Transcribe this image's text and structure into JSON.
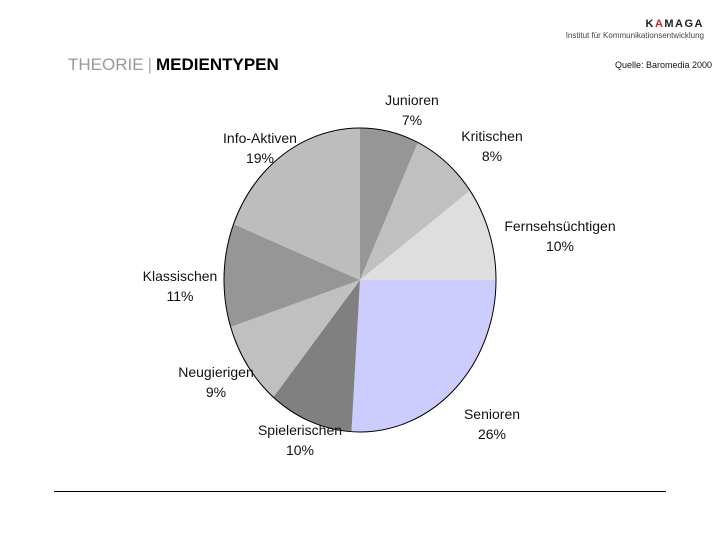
{
  "header": {
    "title_light": "THEORIE",
    "title_separator": "|",
    "title_bold": "MEDIENTYPEN",
    "logo_name_prefix": "K",
    "logo_name_accent": "A",
    "logo_name_suffix": "MAGA",
    "logo_subtitle": "Institut für Kommunikationsentwicklung",
    "source": "Quelle: Baromedia 2000"
  },
  "chart_data": {
    "type": "pie",
    "title": "Medientypen",
    "source": "Quelle: Baromedia 2000",
    "categories": [
      "Senioren",
      "Spielerischen",
      "Neugierigen",
      "Klassischen",
      "Info-Aktiven",
      "Junioren",
      "Kritischen",
      "Fernsehsüchtigen"
    ],
    "values": [
      26,
      10,
      9,
      11,
      19,
      7,
      8,
      10
    ],
    "labels": [
      "26%",
      "10%",
      "9%",
      "11%",
      "19%",
      "7%",
      "8%",
      "10%"
    ],
    "colors": [
      "#ccccff",
      "#808080",
      "#c0c0c0",
      "#969696",
      "#bdbdbd",
      "#969696",
      "#c0c0c0",
      "#dedede"
    ],
    "start_angle_deg": 0,
    "direction": "clockwise",
    "legend": "none"
  }
}
